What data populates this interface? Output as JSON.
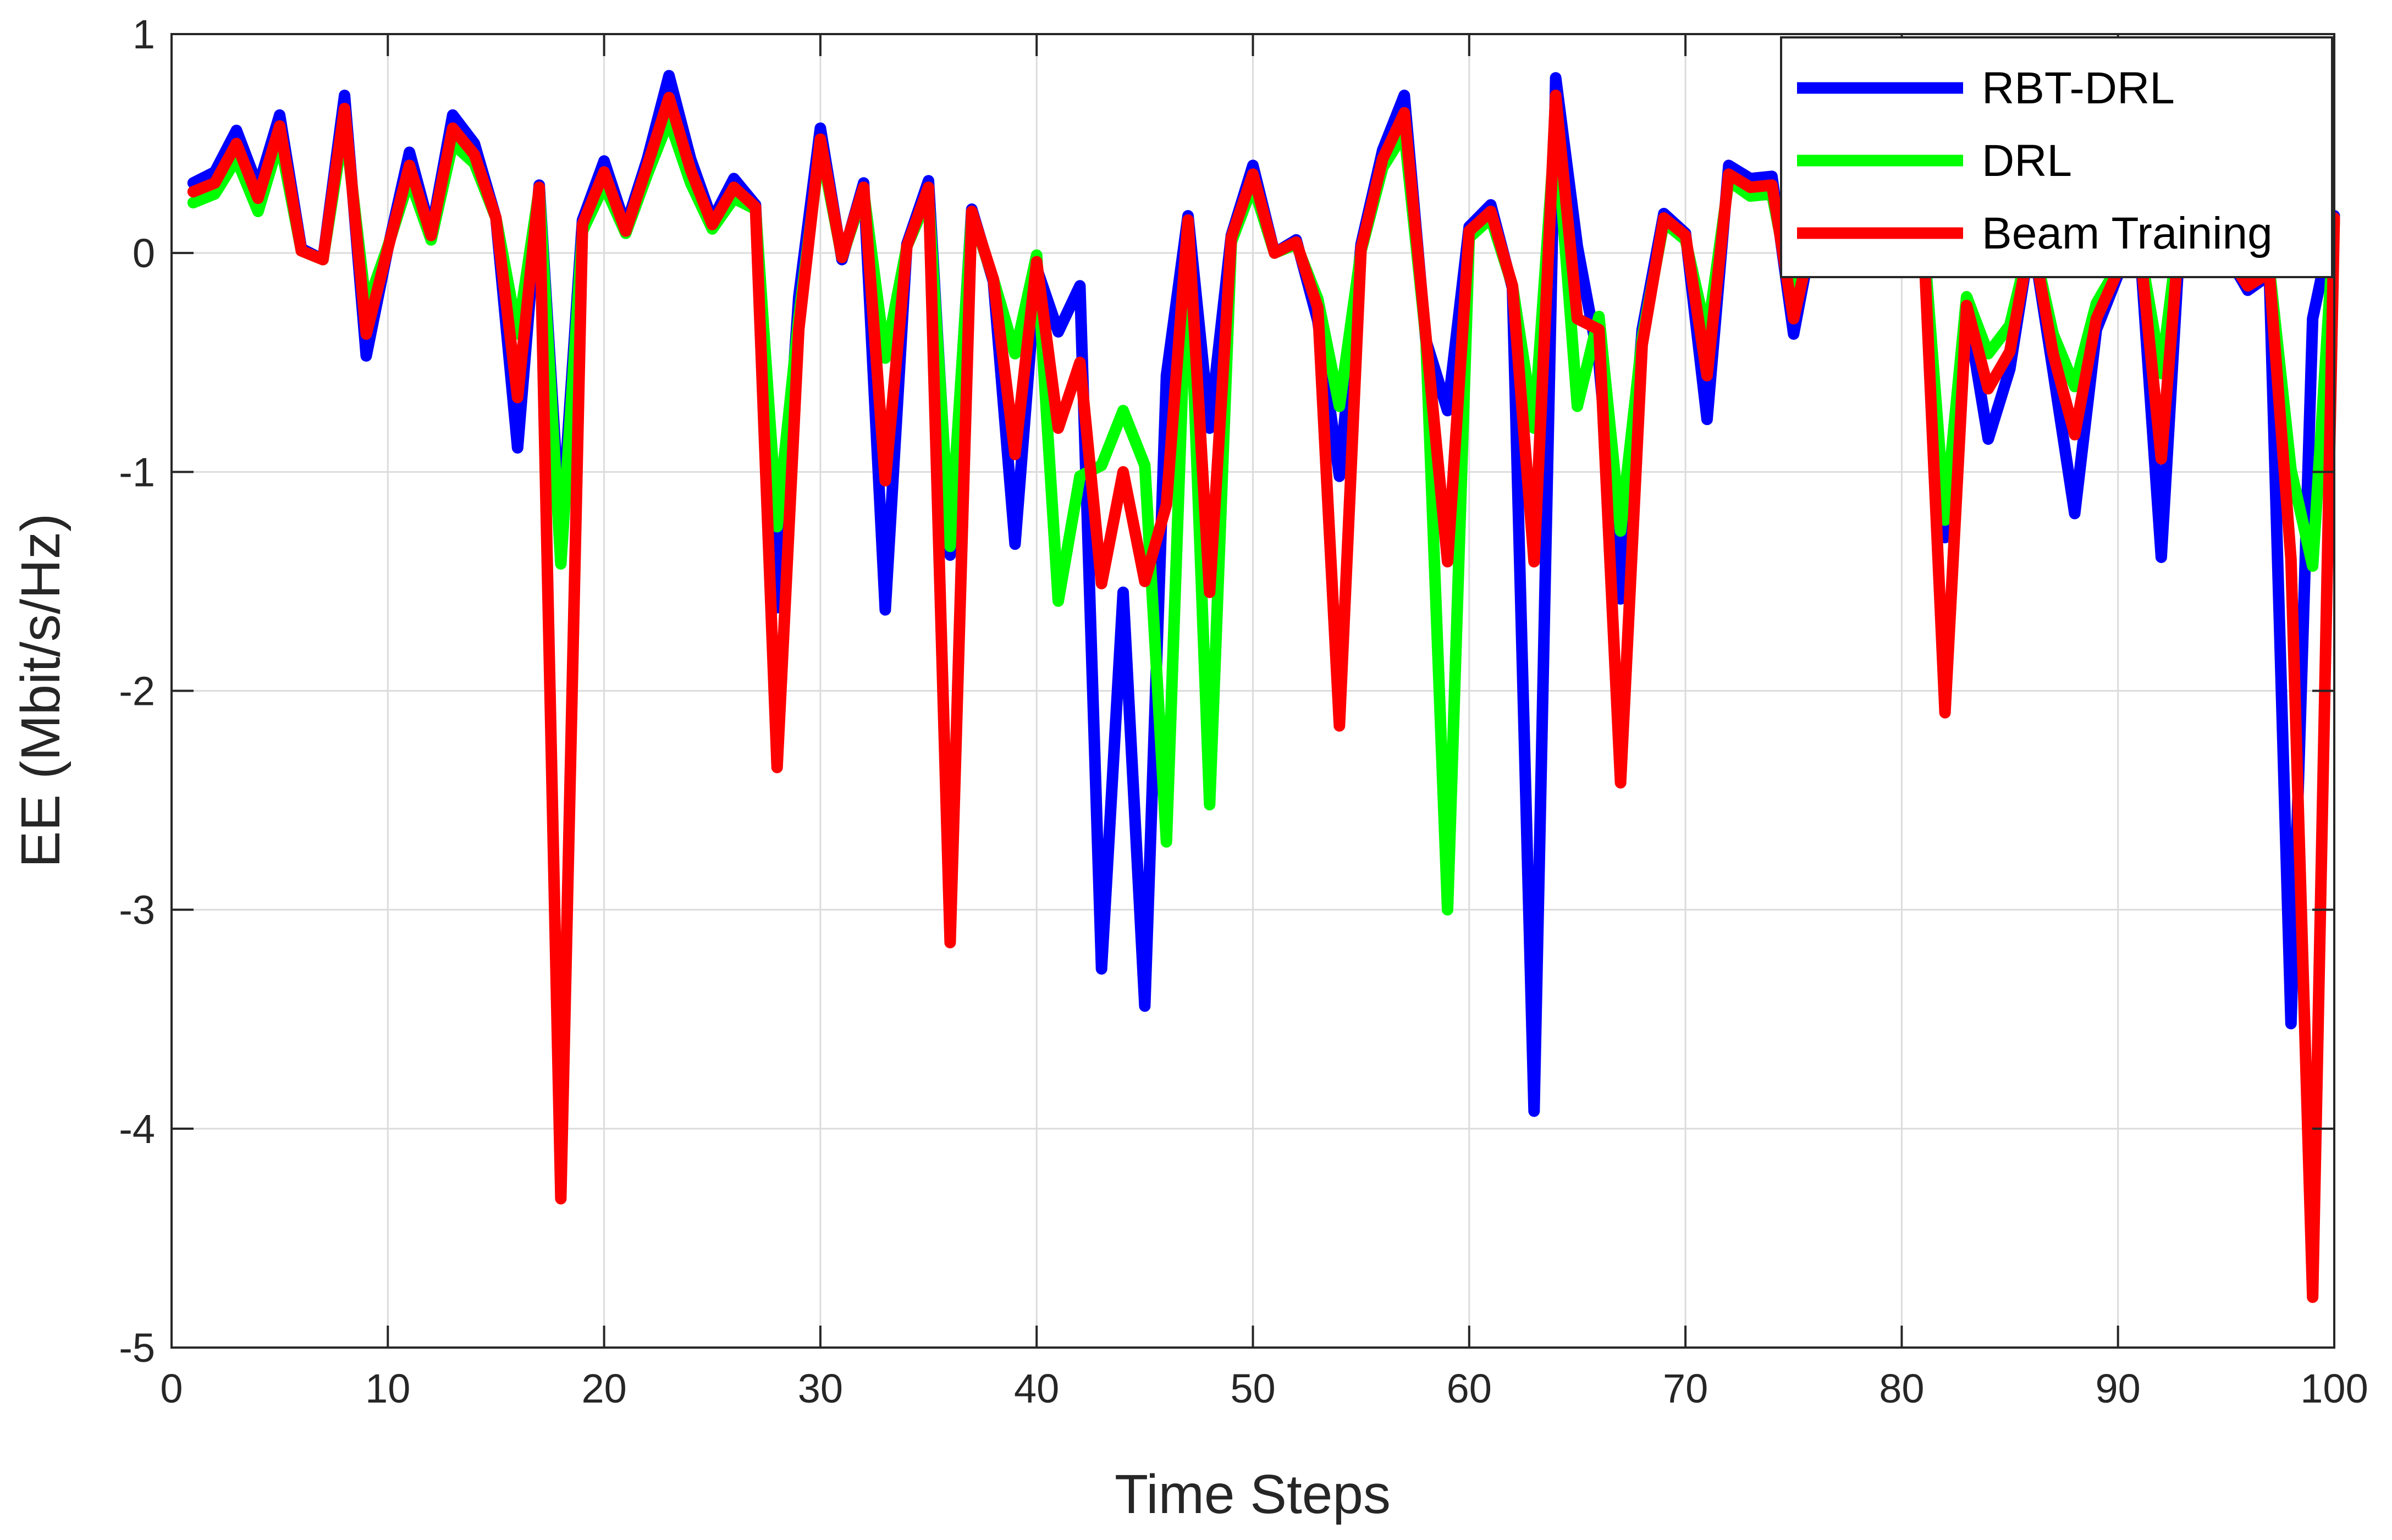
{
  "chart_data": {
    "type": "line",
    "xlabel": "Time Steps",
    "ylabel": "EE (Mbit/s/Hz)",
    "xlim": [
      0,
      100
    ],
    "ylim": [
      -5,
      1
    ],
    "xticks": [
      0,
      10,
      20,
      30,
      40,
      50,
      60,
      70,
      80,
      90,
      100
    ],
    "yticks": [
      1,
      0,
      -1,
      -2,
      -3,
      -4,
      -5
    ],
    "grid": true,
    "legend_position": "top-right",
    "series": [
      {
        "name": "RBT-DRL",
        "color": "#0000ff",
        "x": [
          1,
          2,
          3,
          4,
          5,
          6,
          7,
          8,
          9,
          10,
          11,
          12,
          13,
          14,
          15,
          16,
          17,
          18,
          19,
          20,
          21,
          22,
          23,
          24,
          25,
          26,
          27,
          28,
          29,
          30,
          31,
          32,
          33,
          34,
          35,
          36,
          37,
          38,
          39,
          40,
          41,
          42,
          43,
          44,
          45,
          46,
          47,
          48,
          49,
          50,
          51,
          52,
          53,
          54,
          55,
          56,
          57,
          58,
          59,
          60,
          61,
          62,
          63,
          64,
          65,
          66,
          67,
          68,
          69,
          70,
          71,
          72,
          73,
          74,
          75,
          76,
          77,
          78,
          79,
          80,
          81,
          82,
          83,
          84,
          85,
          86,
          87,
          88,
          89,
          90,
          91,
          92,
          93,
          94,
          95,
          96,
          97,
          98,
          99,
          100
        ],
        "values": [
          0.32,
          0.37,
          0.56,
          0.3,
          0.63,
          0.02,
          -0.03,
          0.72,
          -0.47,
          0.02,
          0.46,
          0.09,
          0.63,
          0.5,
          0.16,
          -0.89,
          0.31,
          -1.3,
          0.15,
          0.42,
          0.12,
          0.43,
          0.81,
          0.43,
          0.15,
          0.34,
          0.22,
          -1.62,
          -0.2,
          0.57,
          -0.03,
          0.32,
          -1.63,
          0.04,
          0.33,
          -1.38,
          0.2,
          -0.13,
          -1.33,
          -0.07,
          -0.36,
          -0.15,
          -3.27,
          -1.55,
          -3.44,
          -0.56,
          0.17,
          -0.8,
          0.08,
          0.4,
          0.0,
          0.06,
          -0.31,
          -1.02,
          0.04,
          0.47,
          0.72,
          -0.4,
          -0.72,
          0.12,
          0.22,
          -0.16,
          -3.92,
          0.8,
          0.03,
          -0.5,
          -1.58,
          -0.35,
          0.18,
          0.09,
          -0.76,
          0.4,
          0.34,
          0.35,
          -0.37,
          0.15,
          0.15,
          0.15,
          0.15,
          0.15,
          0.1,
          -1.3,
          -0.25,
          -0.85,
          -0.53,
          0.1,
          -0.54,
          -1.19,
          -0.35,
          -0.1,
          0.05,
          -1.39,
          0.3,
          0.1,
          0.0,
          -0.17,
          -0.1,
          -3.52,
          -0.3,
          0.17
        ]
      },
      {
        "name": "DRL",
        "color": "#00ff00",
        "x": [
          1,
          2,
          3,
          4,
          5,
          6,
          7,
          8,
          9,
          10,
          11,
          12,
          13,
          14,
          15,
          16,
          17,
          18,
          19,
          20,
          21,
          22,
          23,
          24,
          25,
          26,
          27,
          28,
          29,
          30,
          31,
          32,
          33,
          34,
          35,
          36,
          37,
          38,
          39,
          40,
          41,
          42,
          43,
          44,
          45,
          46,
          47,
          48,
          49,
          50,
          51,
          52,
          53,
          54,
          55,
          56,
          57,
          58,
          59,
          60,
          61,
          62,
          63,
          64,
          65,
          66,
          67,
          68,
          69,
          70,
          71,
          72,
          73,
          74,
          75,
          76,
          77,
          78,
          79,
          80,
          81,
          82,
          83,
          84,
          85,
          86,
          87,
          88,
          89,
          90,
          91,
          92,
          93,
          94,
          95,
          96,
          97,
          98,
          99,
          100
        ],
        "values": [
          0.23,
          0.27,
          0.43,
          0.19,
          0.52,
          0.01,
          -0.03,
          0.6,
          -0.25,
          0.03,
          0.34,
          0.06,
          0.5,
          0.41,
          0.16,
          -0.37,
          0.29,
          -1.42,
          0.1,
          0.31,
          0.09,
          0.36,
          0.61,
          0.32,
          0.11,
          0.25,
          0.2,
          -1.25,
          -0.3,
          0.49,
          -0.02,
          0.28,
          -0.48,
          0.03,
          0.26,
          -1.34,
          0.18,
          -0.12,
          -0.46,
          -0.01,
          -1.59,
          -1.02,
          -0.97,
          -0.72,
          -0.97,
          -2.69,
          0.12,
          -2.52,
          0.05,
          0.31,
          0.0,
          0.04,
          -0.21,
          -0.7,
          0.01,
          0.39,
          0.55,
          -0.39,
          -3.0,
          0.07,
          0.16,
          -0.15,
          -0.8,
          0.6,
          -0.7,
          -0.29,
          -1.27,
          -0.39,
          0.14,
          0.06,
          -0.38,
          0.33,
          0.26,
          0.27,
          -0.23,
          0.12,
          0.12,
          0.12,
          0.12,
          0.12,
          0.08,
          -1.22,
          -0.2,
          -0.46,
          -0.33,
          0.08,
          -0.37,
          -0.61,
          -0.23,
          -0.06,
          0.03,
          -0.55,
          0.25,
          0.08,
          0.0,
          -0.12,
          -0.07,
          -0.99,
          -1.43,
          0.14
        ]
      },
      {
        "name": "Beam Training",
        "color": "#ff0000",
        "x": [
          1,
          2,
          3,
          4,
          5,
          6,
          7,
          8,
          9,
          10,
          11,
          12,
          13,
          14,
          15,
          16,
          17,
          18,
          19,
          20,
          21,
          22,
          23,
          24,
          25,
          26,
          27,
          28,
          29,
          30,
          31,
          32,
          33,
          34,
          35,
          36,
          37,
          38,
          39,
          40,
          41,
          42,
          43,
          44,
          45,
          46,
          47,
          48,
          49,
          50,
          51,
          52,
          53,
          54,
          55,
          56,
          57,
          58,
          59,
          60,
          61,
          62,
          63,
          64,
          65,
          66,
          67,
          68,
          69,
          70,
          71,
          72,
          73,
          74,
          75,
          76,
          77,
          78,
          79,
          80,
          81,
          82,
          83,
          84,
          85,
          86,
          87,
          88,
          89,
          90,
          91,
          92,
          93,
          94,
          95,
          96,
          97,
          98,
          99,
          100
        ],
        "values": [
          0.28,
          0.32,
          0.5,
          0.25,
          0.58,
          0.01,
          -0.03,
          0.66,
          -0.37,
          0.02,
          0.4,
          0.08,
          0.57,
          0.45,
          0.16,
          -0.66,
          0.3,
          -4.32,
          0.13,
          0.37,
          0.1,
          0.4,
          0.71,
          0.38,
          0.13,
          0.3,
          0.21,
          -2.35,
          -0.35,
          0.52,
          -0.02,
          0.3,
          -1.04,
          0.03,
          0.3,
          -3.15,
          0.19,
          -0.12,
          -0.92,
          -0.04,
          -0.8,
          -0.5,
          -1.51,
          -1.0,
          -1.5,
          -1.15,
          0.15,
          -1.55,
          0.07,
          0.36,
          0.0,
          0.05,
          -0.25,
          -2.16,
          0.02,
          0.43,
          0.64,
          -0.38,
          -1.41,
          0.1,
          0.19,
          -0.15,
          -1.41,
          0.72,
          -0.3,
          -0.35,
          -2.42,
          -0.42,
          0.16,
          0.08,
          -0.56,
          0.36,
          0.3,
          0.31,
          -0.3,
          0.14,
          0.14,
          0.14,
          0.14,
          0.14,
          0.09,
          -2.1,
          -0.24,
          -0.62,
          -0.45,
          0.09,
          -0.46,
          -0.83,
          -0.3,
          -0.08,
          0.04,
          -0.94,
          0.28,
          0.09,
          0.0,
          -0.15,
          -0.09,
          -1.4,
          -4.77,
          0.16
        ]
      }
    ]
  }
}
